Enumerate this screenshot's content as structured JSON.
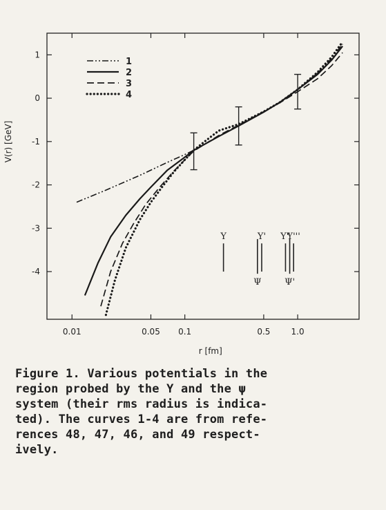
{
  "chart_data": {
    "type": "line",
    "xscale": "log",
    "xlabel": "r [fm]",
    "ylabel": "V(r) [GeV]",
    "xlim": [
      0.006,
      3.5
    ],
    "ylim": [
      -5.1,
      1.5
    ],
    "xticks": [
      {
        "value": 0.01,
        "label": "0.01"
      },
      {
        "value": 0.05,
        "label": "0.05"
      },
      {
        "value": 0.1,
        "label": "0.1"
      },
      {
        "value": 0.5,
        "label": "0.5"
      },
      {
        "value": 1.0,
        "label": "1.0"
      }
    ],
    "yticks": [
      {
        "value": 1,
        "label": "1"
      },
      {
        "value": 0,
        "label": "0"
      },
      {
        "value": -1,
        "label": "-1"
      },
      {
        "value": -2,
        "label": "-2"
      },
      {
        "value": -3,
        "label": "-3"
      },
      {
        "value": -4,
        "label": "-4"
      }
    ],
    "legend_position": "top-left",
    "series": [
      {
        "name": "1",
        "style": "dash-dot-dot",
        "x": [
          0.011,
          0.02,
          0.04,
          0.07,
          0.1,
          0.12,
          0.2,
          0.3,
          0.5,
          0.7,
          1.0,
          1.5,
          2.0,
          2.5
        ],
        "y": [
          -2.4,
          -2.12,
          -1.78,
          -1.48,
          -1.3,
          -1.2,
          -0.88,
          -0.64,
          -0.32,
          -0.09,
          0.2,
          0.58,
          0.92,
          1.25
        ]
      },
      {
        "name": "2",
        "style": "solid",
        "x": [
          0.013,
          0.017,
          0.022,
          0.03,
          0.04,
          0.05,
          0.07,
          0.1,
          0.12,
          0.2,
          0.3,
          0.5,
          0.7,
          1.0,
          1.5,
          2.0,
          2.5
        ],
        "y": [
          -4.55,
          -3.8,
          -3.2,
          -2.7,
          -2.32,
          -2.05,
          -1.66,
          -1.36,
          -1.2,
          -0.88,
          -0.64,
          -0.32,
          -0.09,
          0.2,
          0.55,
          0.88,
          1.2
        ]
      },
      {
        "name": "3",
        "style": "dashed",
        "x": [
          0.018,
          0.022,
          0.028,
          0.035,
          0.045,
          0.06,
          0.08,
          0.1,
          0.12,
          0.2,
          0.3,
          0.5,
          0.7,
          1.0,
          1.5,
          2.0,
          2.5
        ],
        "y": [
          -4.8,
          -4.0,
          -3.35,
          -2.9,
          -2.45,
          -2.05,
          -1.68,
          -1.42,
          -1.22,
          -0.86,
          -0.62,
          -0.31,
          -0.1,
          0.15,
          0.45,
          0.75,
          1.05
        ]
      },
      {
        "name": "4",
        "style": "dotted",
        "x": [
          0.02,
          0.024,
          0.03,
          0.04,
          0.05,
          0.065,
          0.08,
          0.1,
          0.12,
          0.15,
          0.2,
          0.3,
          0.5,
          0.7,
          1.0,
          1.5,
          2.0,
          2.5
        ],
        "y": [
          -5.0,
          -4.2,
          -3.45,
          -2.8,
          -2.4,
          -2.0,
          -1.7,
          -1.42,
          -1.2,
          -1.0,
          -0.75,
          -0.6,
          -0.31,
          -0.09,
          0.2,
          0.6,
          0.95,
          1.3
        ]
      }
    ],
    "error_bars": [
      {
        "x": 0.12,
        "y": -1.18,
        "low": -1.65,
        "high": -0.8
      },
      {
        "x": 0.3,
        "y": -0.62,
        "low": -1.08,
        "high": -0.2
      },
      {
        "x": 1.0,
        "y": 0.18,
        "low": -0.25,
        "high": 0.55
      }
    ],
    "rms_markers": [
      {
        "label": "Υ",
        "x": 0.22,
        "top": -3.35,
        "bottom": -4.0,
        "label_pos": "top"
      },
      {
        "label": "Υ'",
        "x": 0.48,
        "top": -3.35,
        "bottom": -4.0,
        "label_pos": "top"
      },
      {
        "label": "Υ\"",
        "x": 0.78,
        "top": -3.35,
        "bottom": -4.0,
        "label_pos": "top"
      },
      {
        "label": "Υ'''",
        "x": 0.92,
        "top": -3.35,
        "bottom": -4.0,
        "label_pos": "top"
      },
      {
        "label": "Ψ",
        "x": 0.44,
        "top": -3.25,
        "bottom": -4.05,
        "label_pos": "bottom"
      },
      {
        "label": "Ψ'",
        "x": 0.85,
        "top": -3.25,
        "bottom": -4.05,
        "label_pos": "bottom"
      }
    ]
  },
  "caption": "Figure 1. Various potentials in the\nregion probed by the Υ and the ψ\nsystem (their rms radius is indica-\nted). The curves 1-4 are from refe-\nrences 48, 47, 46, and 49 respect-\nively."
}
